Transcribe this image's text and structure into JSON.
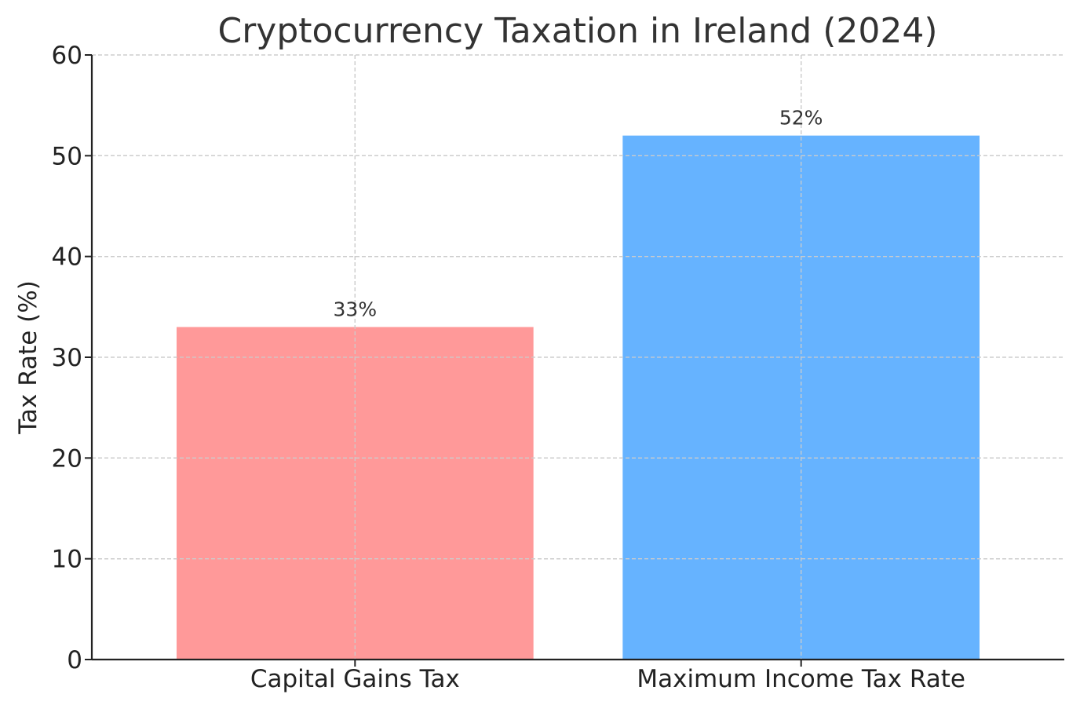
{
  "chart_data": {
    "type": "bar",
    "title": "Cryptocurrency Taxation in Ireland (2024)",
    "xlabel": "",
    "ylabel": "Tax Rate (%)",
    "categories": [
      "Capital Gains Tax",
      "Maximum Income Tax Rate"
    ],
    "values": [
      33,
      52
    ],
    "data_labels": [
      "33%",
      "52%"
    ],
    "colors": [
      "#ff9999",
      "#66b3ff"
    ],
    "ylim": [
      0,
      60
    ],
    "yticks": [
      0,
      10,
      20,
      30,
      40,
      50,
      60
    ],
    "ytick_labels": [
      "0",
      "10",
      "20",
      "30",
      "40",
      "50",
      "60"
    ],
    "grid": true,
    "legend": "none"
  }
}
